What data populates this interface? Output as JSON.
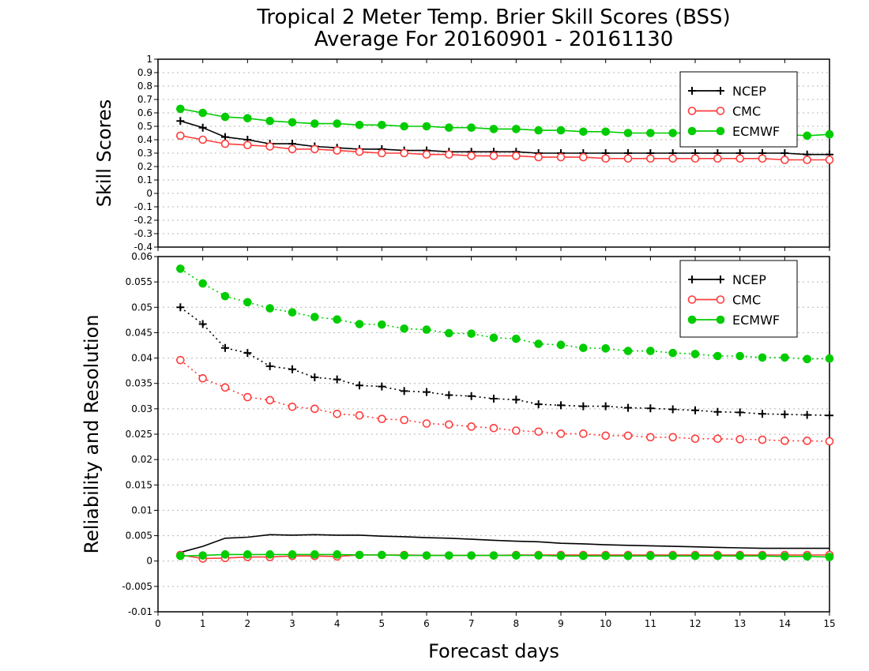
{
  "title": {
    "line1": "Tropical 2 Meter Temp. Brier Skill Scores (BSS)",
    "line2": "Average For 20160901 - 20161130"
  },
  "xlabel": "Forecast days",
  "colors": {
    "NCEP": "#000000",
    "CMC": "#ff3b3b",
    "ECMWF": "#00cc00",
    "grid": "#b4b4b4"
  },
  "chart_data": [
    {
      "type": "line",
      "ylabel": "Skill Scores",
      "xlim": [
        0,
        15
      ],
      "ylim": [
        -0.4,
        1
      ],
      "x_ticks": [
        "0",
        "1",
        "2",
        "3",
        "4",
        "5",
        "6",
        "7",
        "8",
        "9",
        "10",
        "11",
        "12",
        "13",
        "14",
        "15"
      ],
      "y_ticks": [
        "-0.4",
        "-0.3",
        "-0.2",
        "-0.1",
        "0",
        "0.1",
        "0.2",
        "0.3",
        "0.4",
        "0.5",
        "0.6",
        "0.7",
        "0.8",
        "0.9",
        "1"
      ],
      "legend": {
        "position": "top-right",
        "entries": [
          "NCEP",
          "CMC",
          "ECMWF"
        ]
      },
      "grid": true,
      "x": [
        0.5,
        1,
        1.5,
        2,
        2.5,
        3,
        3.5,
        4,
        4.5,
        5,
        5.5,
        6,
        6.5,
        7,
        7.5,
        8,
        8.5,
        9,
        9.5,
        10,
        10.5,
        11,
        11.5,
        12,
        12.5,
        13,
        13.5,
        14,
        14.5,
        15
      ],
      "series": [
        {
          "name": "NCEP",
          "marker": "plus",
          "style": "solid",
          "values": [
            0.54,
            0.49,
            0.42,
            0.4,
            0.37,
            0.37,
            0.35,
            0.34,
            0.33,
            0.33,
            0.32,
            0.32,
            0.31,
            0.31,
            0.31,
            0.31,
            0.3,
            0.3,
            0.3,
            0.3,
            0.3,
            0.3,
            0.3,
            0.3,
            0.3,
            0.3,
            0.3,
            0.3,
            0.29,
            0.29
          ]
        },
        {
          "name": "CMC",
          "marker": "open-circle",
          "style": "solid",
          "values": [
            0.43,
            0.4,
            0.37,
            0.36,
            0.35,
            0.33,
            0.33,
            0.32,
            0.31,
            0.3,
            0.3,
            0.29,
            0.29,
            0.28,
            0.28,
            0.28,
            0.27,
            0.27,
            0.27,
            0.26,
            0.26,
            0.26,
            0.26,
            0.26,
            0.26,
            0.26,
            0.26,
            0.25,
            0.25,
            0.25
          ]
        },
        {
          "name": "ECMWF",
          "marker": "filled-circle",
          "style": "solid",
          "values": [
            0.63,
            0.6,
            0.57,
            0.56,
            0.54,
            0.53,
            0.52,
            0.52,
            0.51,
            0.51,
            0.5,
            0.5,
            0.49,
            0.49,
            0.48,
            0.48,
            0.47,
            0.47,
            0.46,
            0.46,
            0.45,
            0.45,
            0.45,
            0.45,
            0.45,
            0.44,
            0.44,
            0.44,
            0.43,
            0.44
          ]
        }
      ]
    },
    {
      "type": "line",
      "ylabel": "Reliability and Resolution",
      "xlim": [
        0,
        15
      ],
      "ylim": [
        -0.01,
        0.06
      ],
      "x_ticks": [
        "0",
        "1",
        "2",
        "3",
        "4",
        "5",
        "6",
        "7",
        "8",
        "9",
        "10",
        "11",
        "12",
        "13",
        "14",
        "15"
      ],
      "y_ticks": [
        "-0.01",
        "-0.005",
        "0",
        "0.005",
        "0.01",
        "0.015",
        "0.02",
        "0.025",
        "0.03",
        "0.035",
        "0.04",
        "0.045",
        "0.05",
        "0.055",
        "0.06"
      ],
      "legend": {
        "position": "top-right",
        "entries": [
          "NCEP",
          "CMC",
          "ECMWF"
        ]
      },
      "grid": true,
      "x": [
        0.5,
        1,
        1.5,
        2,
        2.5,
        3,
        3.5,
        4,
        4.5,
        5,
        5.5,
        6,
        6.5,
        7,
        7.5,
        8,
        8.5,
        9,
        9.5,
        10,
        10.5,
        11,
        11.5,
        12,
        12.5,
        13,
        13.5,
        14,
        14.5,
        15
      ],
      "series": [
        {
          "name": "NCEP",
          "role": "resolution",
          "marker": "plus",
          "style": "dotted",
          "values": [
            0.05,
            0.0467,
            0.042,
            0.041,
            0.0384,
            0.0378,
            0.0362,
            0.0358,
            0.0346,
            0.0344,
            0.0335,
            0.0333,
            0.0327,
            0.0325,
            0.032,
            0.0318,
            0.0309,
            0.0307,
            0.0305,
            0.0305,
            0.0302,
            0.0301,
            0.0299,
            0.0297,
            0.0294,
            0.0293,
            0.029,
            0.0289,
            0.0288,
            0.0287
          ]
        },
        {
          "name": "CMC",
          "role": "resolution",
          "marker": "open-circle",
          "style": "dotted",
          "values": [
            0.0396,
            0.036,
            0.0342,
            0.0323,
            0.0317,
            0.0304,
            0.03,
            0.029,
            0.0287,
            0.028,
            0.0278,
            0.0271,
            0.0269,
            0.0265,
            0.0262,
            0.0257,
            0.0255,
            0.0251,
            0.0251,
            0.0247,
            0.0247,
            0.0244,
            0.0244,
            0.0241,
            0.0241,
            0.024,
            0.0239,
            0.0237,
            0.0237,
            0.0236
          ]
        },
        {
          "name": "ECMWF",
          "role": "resolution",
          "marker": "filled-circle",
          "style": "dotted",
          "values": [
            0.0576,
            0.0547,
            0.0522,
            0.051,
            0.0498,
            0.049,
            0.0481,
            0.0476,
            0.0467,
            0.0466,
            0.0458,
            0.0456,
            0.0449,
            0.0448,
            0.044,
            0.0438,
            0.0428,
            0.0426,
            0.042,
            0.0419,
            0.0414,
            0.0414,
            0.041,
            0.0408,
            0.0404,
            0.0404,
            0.0401,
            0.0401,
            0.0398,
            0.0399
          ]
        },
        {
          "name": "NCEP",
          "role": "reliability",
          "marker": "none",
          "style": "solid",
          "values": [
            0.0017,
            0.0029,
            0.0045,
            0.0047,
            0.0052,
            0.0051,
            0.0052,
            0.0051,
            0.0051,
            0.0049,
            0.0048,
            0.0046,
            0.0045,
            0.0043,
            0.0041,
            0.0039,
            0.0038,
            0.0035,
            0.0034,
            0.0032,
            0.0031,
            0.003,
            0.0029,
            0.0028,
            0.0027,
            0.0026,
            0.0025,
            0.0025,
            0.0025,
            0.0025
          ]
        },
        {
          "name": "CMC",
          "role": "reliability",
          "marker": "open-circle",
          "style": "solid",
          "values": [
            0.0012,
            0.0005,
            0.0006,
            0.0008,
            0.0008,
            0.001,
            0.001,
            0.0009,
            0.0012,
            0.0012,
            0.0012,
            0.0011,
            0.0011,
            0.0011,
            0.0011,
            0.0012,
            0.0012,
            0.0012,
            0.0012,
            0.0012,
            0.0012,
            0.0012,
            0.0012,
            0.0012,
            0.0012,
            0.0012,
            0.0012,
            0.0012,
            0.0012,
            0.0012
          ]
        },
        {
          "name": "ECMWF",
          "role": "reliability",
          "marker": "filled-circle",
          "style": "solid",
          "values": [
            0.001,
            0.0011,
            0.0013,
            0.0013,
            0.0013,
            0.0013,
            0.0013,
            0.0013,
            0.0012,
            0.0012,
            0.0011,
            0.0011,
            0.0011,
            0.0011,
            0.0011,
            0.0011,
            0.0011,
            0.001,
            0.001,
            0.001,
            0.001,
            0.001,
            0.001,
            0.001,
            0.001,
            0.001,
            0.001,
            0.0009,
            0.0009,
            0.0008
          ]
        }
      ]
    }
  ]
}
